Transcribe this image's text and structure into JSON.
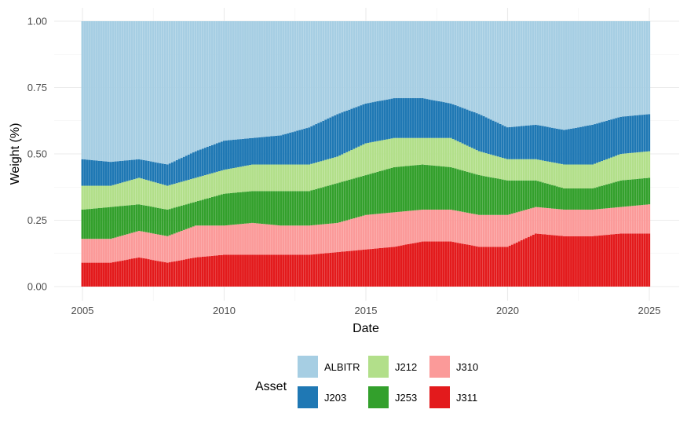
{
  "chart_data": {
    "type": "bar",
    "stacked": true,
    "xlabel": "Date",
    "ylabel": "Weight (%)",
    "xlim": [
      2005,
      2025
    ],
    "ylim": [
      0,
      1
    ],
    "x_ticks": [
      2005,
      2010,
      2015,
      2020,
      2025
    ],
    "y_ticks": [
      0,
      0.25,
      0.5,
      0.75,
      1
    ],
    "y_tick_labels": [
      "0.00",
      "0.25",
      "0.50",
      "0.75",
      "1.00"
    ],
    "grid": true,
    "legend": {
      "title": "Asset",
      "position": "bottom"
    },
    "series_order": [
      "J311",
      "J310",
      "J253",
      "J212",
      "J203",
      "ALBITR"
    ],
    "legend_order": [
      "ALBITR",
      "J203",
      "J212",
      "J253",
      "J310",
      "J311"
    ],
    "colors": {
      "ALBITR": "#a6cee3",
      "J203": "#1f78b4",
      "J212": "#b2df8a",
      "J253": "#33a02c",
      "J310": "#fb9a99",
      "J311": "#e31a1c"
    },
    "bar_spacing_years": 0.0833,
    "approximate_weights_at_year": {
      "x": [
        2005,
        2006,
        2007,
        2008,
        2009,
        2010,
        2011,
        2012,
        2013,
        2014,
        2015,
        2016,
        2017,
        2018,
        2019,
        2020,
        2021,
        2022,
        2023,
        2024,
        2025
      ],
      "J311": [
        0.09,
        0.09,
        0.11,
        0.09,
        0.11,
        0.12,
        0.12,
        0.12,
        0.12,
        0.13,
        0.14,
        0.15,
        0.17,
        0.17,
        0.15,
        0.15,
        0.2,
        0.19,
        0.19,
        0.2,
        0.2
      ],
      "J310": [
        0.09,
        0.09,
        0.1,
        0.1,
        0.12,
        0.11,
        0.12,
        0.11,
        0.11,
        0.11,
        0.13,
        0.13,
        0.12,
        0.12,
        0.12,
        0.12,
        0.1,
        0.1,
        0.1,
        0.1,
        0.11
      ],
      "J253": [
        0.11,
        0.12,
        0.1,
        0.1,
        0.09,
        0.12,
        0.12,
        0.13,
        0.13,
        0.15,
        0.15,
        0.17,
        0.17,
        0.16,
        0.15,
        0.13,
        0.1,
        0.08,
        0.08,
        0.1,
        0.1
      ],
      "J212": [
        0.09,
        0.08,
        0.1,
        0.09,
        0.09,
        0.09,
        0.1,
        0.1,
        0.1,
        0.1,
        0.12,
        0.11,
        0.1,
        0.11,
        0.09,
        0.08,
        0.08,
        0.09,
        0.09,
        0.1,
        0.1
      ],
      "J203": [
        0.1,
        0.09,
        0.07,
        0.08,
        0.1,
        0.11,
        0.1,
        0.11,
        0.14,
        0.16,
        0.15,
        0.15,
        0.15,
        0.13,
        0.14,
        0.12,
        0.13,
        0.13,
        0.15,
        0.14,
        0.14
      ],
      "ALBITR": [
        0.52,
        0.53,
        0.52,
        0.54,
        0.49,
        0.45,
        0.44,
        0.43,
        0.4,
        0.35,
        0.31,
        0.29,
        0.29,
        0.31,
        0.35,
        0.4,
        0.39,
        0.41,
        0.39,
        0.36,
        0.35
      ]
    }
  }
}
